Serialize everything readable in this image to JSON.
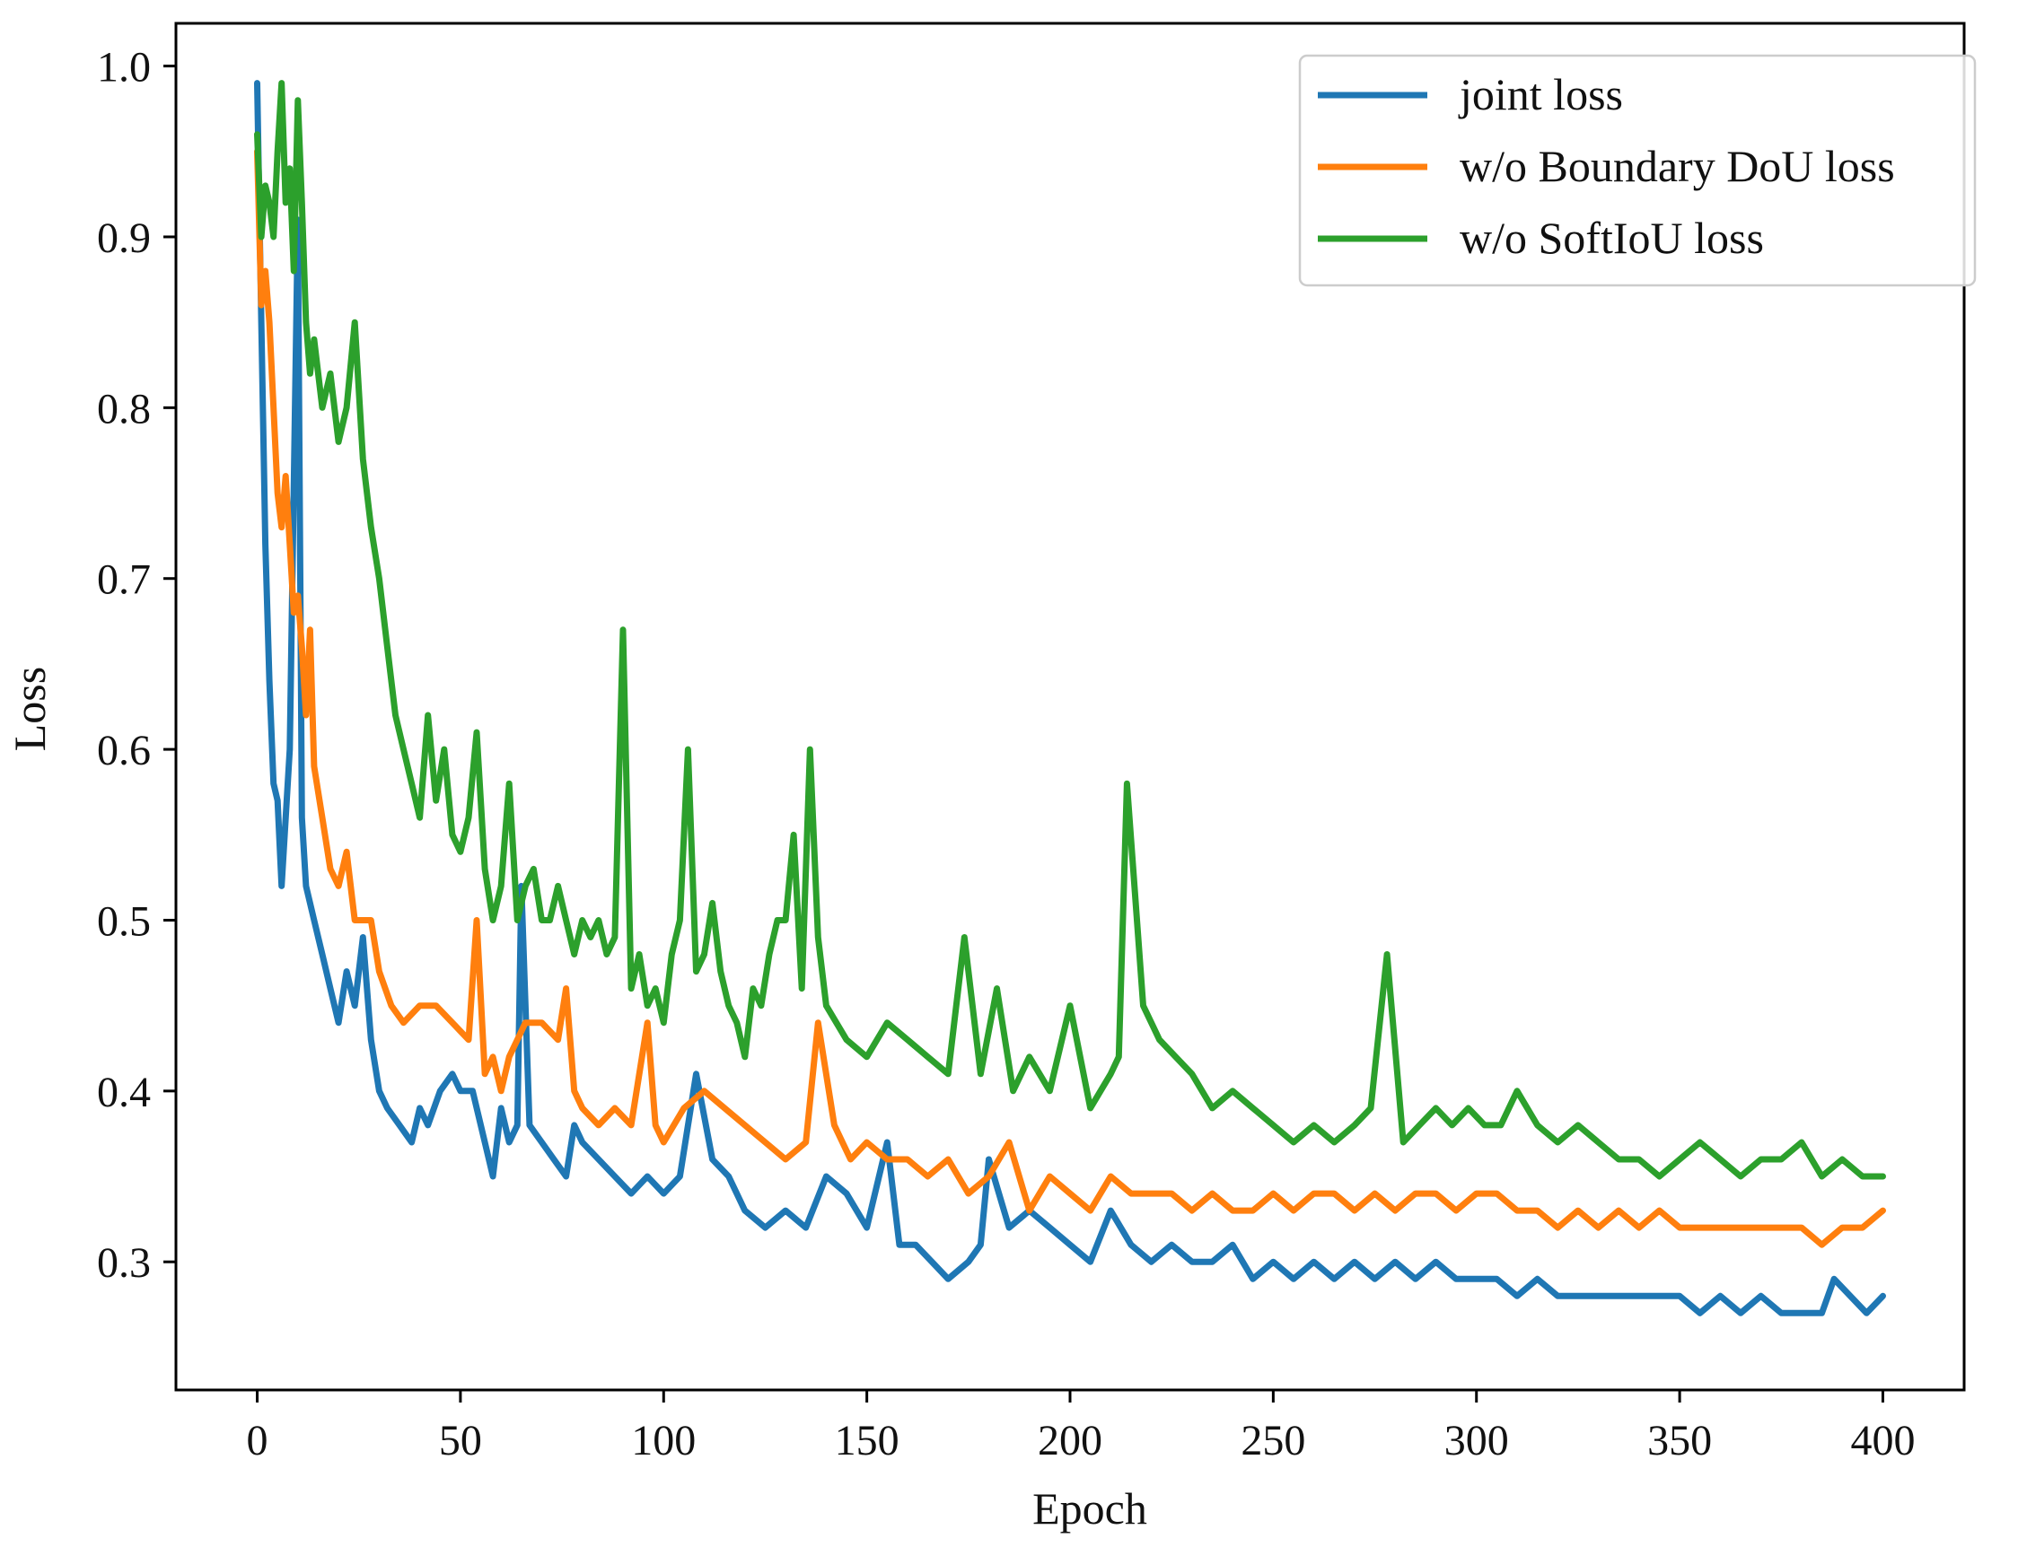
{
  "chart_data": {
    "type": "line",
    "title": "",
    "xlabel": "Epoch",
    "ylabel": "Loss",
    "xlim": [
      -20,
      420
    ],
    "ylim": [
      0.225,
      1.025
    ],
    "xticks": [
      0,
      50,
      100,
      150,
      200,
      250,
      300,
      350,
      400
    ],
    "xtick_labels": [
      "0",
      "50",
      "100",
      "150",
      "200",
      "250",
      "300",
      "350",
      "400"
    ],
    "yticks": [
      0.3,
      0.4,
      0.5,
      0.6,
      0.7,
      0.8,
      0.9,
      1.0
    ],
    "ytick_labels": [
      "0.3",
      "0.4",
      "0.5",
      "0.6",
      "0.7",
      "0.8",
      "0.9",
      "1.0"
    ],
    "grid": false,
    "legend_position": "top-right",
    "series": [
      {
        "name": "joint loss",
        "color": "#1f77b4",
        "x": [
          0,
          1,
          2,
          3,
          4,
          5,
          6,
          8,
          10,
          11,
          12,
          14,
          16,
          18,
          20,
          22,
          24,
          26,
          28,
          30,
          32,
          35,
          38,
          40,
          42,
          45,
          48,
          50,
          53,
          56,
          58,
          60,
          62,
          64,
          65,
          67,
          70,
          73,
          76,
          78,
          80,
          84,
          88,
          92,
          96,
          100,
          104,
          108,
          112,
          116,
          120,
          125,
          130,
          135,
          140,
          145,
          150,
          155,
          158,
          162,
          166,
          170,
          175,
          178,
          180,
          185,
          190,
          195,
          200,
          205,
          210,
          215,
          220,
          225,
          230,
          235,
          240,
          245,
          250,
          255,
          260,
          265,
          270,
          275,
          280,
          285,
          290,
          295,
          300,
          305,
          310,
          315,
          320,
          325,
          330,
          335,
          340,
          345,
          350,
          355,
          360,
          365,
          370,
          375,
          380,
          385,
          388,
          392,
          396,
          400
        ],
        "values": [
          0.99,
          0.85,
          0.72,
          0.64,
          0.58,
          0.57,
          0.52,
          0.6,
          0.91,
          0.56,
          0.52,
          0.5,
          0.48,
          0.46,
          0.44,
          0.47,
          0.45,
          0.49,
          0.43,
          0.4,
          0.39,
          0.38,
          0.37,
          0.39,
          0.38,
          0.4,
          0.41,
          0.4,
          0.4,
          0.37,
          0.35,
          0.39,
          0.37,
          0.38,
          0.52,
          0.38,
          0.37,
          0.36,
          0.35,
          0.38,
          0.37,
          0.36,
          0.35,
          0.34,
          0.35,
          0.34,
          0.35,
          0.41,
          0.36,
          0.35,
          0.33,
          0.32,
          0.33,
          0.32,
          0.35,
          0.34,
          0.32,
          0.37,
          0.31,
          0.31,
          0.3,
          0.29,
          0.3,
          0.31,
          0.36,
          0.32,
          0.33,
          0.32,
          0.31,
          0.3,
          0.33,
          0.31,
          0.3,
          0.31,
          0.3,
          0.3,
          0.31,
          0.29,
          0.3,
          0.29,
          0.3,
          0.29,
          0.3,
          0.29,
          0.3,
          0.29,
          0.3,
          0.29,
          0.29,
          0.29,
          0.28,
          0.29,
          0.28,
          0.28,
          0.28,
          0.28,
          0.28,
          0.28,
          0.28,
          0.27,
          0.28,
          0.27,
          0.28,
          0.27,
          0.27,
          0.27,
          0.29,
          0.28,
          0.27,
          0.28
        ]
      },
      {
        "name": "w/o Boundary DoU loss",
        "color": "#ff7f0e",
        "x": [
          0,
          1,
          2,
          3,
          4,
          5,
          6,
          7,
          8,
          9,
          10,
          11,
          12,
          13,
          14,
          16,
          18,
          20,
          22,
          24,
          26,
          28,
          30,
          33,
          36,
          40,
          44,
          48,
          52,
          54,
          56,
          58,
          60,
          62,
          64,
          66,
          70,
          74,
          76,
          78,
          80,
          84,
          88,
          92,
          96,
          98,
          100,
          105,
          110,
          115,
          120,
          125,
          130,
          135,
          138,
          142,
          146,
          150,
          155,
          160,
          165,
          170,
          175,
          180,
          185,
          190,
          195,
          200,
          205,
          210,
          215,
          220,
          225,
          230,
          235,
          240,
          245,
          250,
          255,
          260,
          265,
          270,
          275,
          280,
          285,
          290,
          295,
          300,
          305,
          310,
          315,
          320,
          325,
          330,
          335,
          340,
          345,
          350,
          355,
          360,
          365,
          370,
          375,
          380,
          385,
          390,
          395,
          400
        ],
        "values": [
          0.95,
          0.86,
          0.88,
          0.85,
          0.8,
          0.75,
          0.73,
          0.76,
          0.72,
          0.68,
          0.69,
          0.66,
          0.62,
          0.67,
          0.59,
          0.56,
          0.53,
          0.52,
          0.54,
          0.5,
          0.5,
          0.5,
          0.47,
          0.45,
          0.44,
          0.45,
          0.45,
          0.44,
          0.43,
          0.5,
          0.41,
          0.42,
          0.4,
          0.42,
          0.43,
          0.44,
          0.44,
          0.43,
          0.46,
          0.4,
          0.39,
          0.38,
          0.39,
          0.38,
          0.44,
          0.38,
          0.37,
          0.39,
          0.4,
          0.39,
          0.38,
          0.37,
          0.36,
          0.37,
          0.44,
          0.38,
          0.36,
          0.37,
          0.36,
          0.36,
          0.35,
          0.36,
          0.34,
          0.35,
          0.37,
          0.33,
          0.35,
          0.34,
          0.33,
          0.35,
          0.34,
          0.34,
          0.34,
          0.33,
          0.34,
          0.33,
          0.33,
          0.34,
          0.33,
          0.34,
          0.34,
          0.33,
          0.34,
          0.33,
          0.34,
          0.34,
          0.33,
          0.34,
          0.34,
          0.33,
          0.33,
          0.32,
          0.33,
          0.32,
          0.33,
          0.32,
          0.33,
          0.32,
          0.32,
          0.32,
          0.32,
          0.32,
          0.32,
          0.32,
          0.31,
          0.32,
          0.32,
          0.33
        ]
      },
      {
        "name": "w/o SoftIoU loss",
        "color": "#2ca02c",
        "x": [
          0,
          1,
          2,
          3,
          4,
          5,
          6,
          7,
          8,
          9,
          10,
          11,
          12,
          13,
          14,
          16,
          18,
          20,
          22,
          24,
          26,
          28,
          30,
          32,
          34,
          36,
          38,
          40,
          42,
          44,
          46,
          48,
          50,
          52,
          54,
          56,
          58,
          60,
          62,
          64,
          66,
          68,
          70,
          72,
          74,
          76,
          78,
          80,
          82,
          84,
          86,
          88,
          90,
          92,
          94,
          96,
          98,
          100,
          102,
          104,
          106,
          108,
          110,
          112,
          114,
          116,
          118,
          120,
          122,
          124,
          126,
          128,
          130,
          132,
          134,
          136,
          138,
          140,
          145,
          150,
          155,
          160,
          165,
          170,
          174,
          178,
          182,
          186,
          190,
          195,
          200,
          205,
          210,
          212,
          214,
          218,
          222,
          226,
          230,
          235,
          240,
          245,
          250,
          255,
          260,
          265,
          270,
          274,
          278,
          282,
          286,
          290,
          294,
          298,
          302,
          306,
          310,
          315,
          320,
          325,
          330,
          335,
          340,
          345,
          350,
          355,
          360,
          365,
          370,
          375,
          380,
          385,
          390,
          395,
          400
        ],
        "values": [
          0.96,
          0.9,
          0.93,
          0.92,
          0.9,
          0.95,
          0.99,
          0.92,
          0.94,
          0.88,
          0.98,
          0.92,
          0.85,
          0.82,
          0.84,
          0.8,
          0.82,
          0.78,
          0.8,
          0.85,
          0.77,
          0.73,
          0.7,
          0.66,
          0.62,
          0.6,
          0.58,
          0.56,
          0.62,
          0.57,
          0.6,
          0.55,
          0.54,
          0.56,
          0.61,
          0.53,
          0.5,
          0.52,
          0.58,
          0.5,
          0.52,
          0.53,
          0.5,
          0.5,
          0.52,
          0.5,
          0.48,
          0.5,
          0.49,
          0.5,
          0.48,
          0.49,
          0.67,
          0.46,
          0.48,
          0.45,
          0.46,
          0.44,
          0.48,
          0.5,
          0.6,
          0.47,
          0.48,
          0.51,
          0.47,
          0.45,
          0.44,
          0.42,
          0.46,
          0.45,
          0.48,
          0.5,
          0.5,
          0.55,
          0.46,
          0.6,
          0.49,
          0.45,
          0.43,
          0.42,
          0.44,
          0.43,
          0.42,
          0.41,
          0.49,
          0.41,
          0.46,
          0.4,
          0.42,
          0.4,
          0.45,
          0.39,
          0.41,
          0.42,
          0.58,
          0.45,
          0.43,
          0.42,
          0.41,
          0.39,
          0.4,
          0.39,
          0.38,
          0.37,
          0.38,
          0.37,
          0.38,
          0.39,
          0.48,
          0.37,
          0.38,
          0.39,
          0.38,
          0.39,
          0.38,
          0.38,
          0.4,
          0.38,
          0.37,
          0.38,
          0.37,
          0.36,
          0.36,
          0.35,
          0.36,
          0.37,
          0.36,
          0.35,
          0.36,
          0.36,
          0.37,
          0.35,
          0.36,
          0.35,
          0.35
        ]
      }
    ]
  }
}
